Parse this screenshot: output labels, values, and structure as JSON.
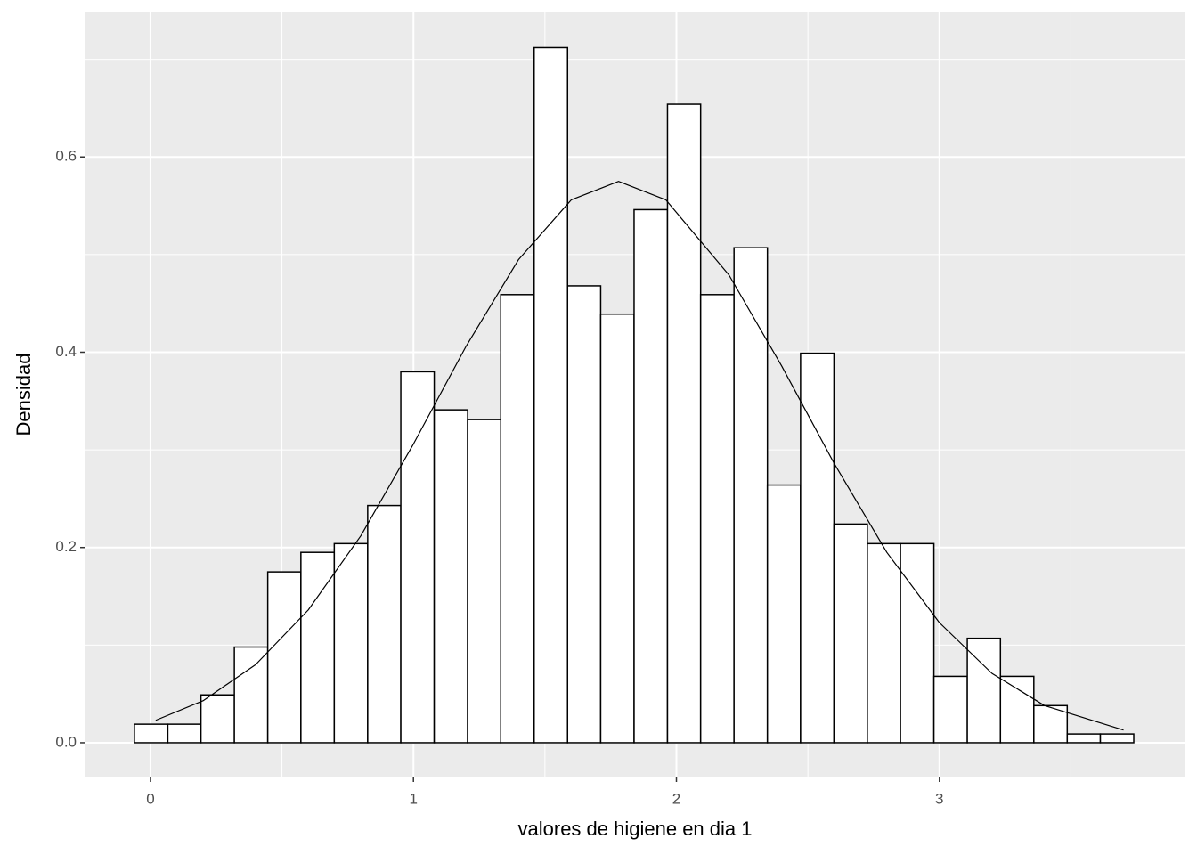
{
  "chart_data": {
    "type": "histogram",
    "x_label": "valores de higiene en dia 1",
    "y_label": "Densidad",
    "bins": [
      -0.061,
      0.066,
      0.192,
      0.319,
      0.446,
      0.572,
      0.699,
      0.826,
      0.952,
      1.079,
      1.206,
      1.332,
      1.459,
      1.586,
      1.712,
      1.839,
      1.966,
      2.092,
      2.219,
      2.346,
      2.472,
      2.599,
      2.726,
      2.852,
      2.979,
      3.106,
      3.232,
      3.359,
      3.486,
      3.612,
      3.739
    ],
    "values": [
      0.019,
      0.019,
      0.049,
      0.098,
      0.175,
      0.195,
      0.204,
      0.243,
      0.38,
      0.341,
      0.331,
      0.459,
      0.712,
      0.468,
      0.439,
      0.546,
      0.654,
      0.459,
      0.507,
      0.264,
      0.399,
      0.224,
      0.204,
      0.204,
      0.068,
      0.107,
      0.068,
      0.038,
      0.009,
      0.009
    ],
    "color": "#ffffff",
    "edge_color": "#000000",
    "density_curve": {
      "color": "#000000",
      "x": [
        0.02,
        0.2,
        0.4,
        0.6,
        0.8,
        1.0,
        1.2,
        1.4,
        1.6,
        1.78,
        1.96,
        2.2,
        2.4,
        2.6,
        2.8,
        3.0,
        3.2,
        3.4,
        3.7
      ],
      "y": [
        0.023,
        0.043,
        0.08,
        0.136,
        0.212,
        0.306,
        0.406,
        0.495,
        0.556,
        0.575,
        0.556,
        0.479,
        0.386,
        0.286,
        0.195,
        0.123,
        0.071,
        0.038,
        0.013
      ]
    },
    "xlim": [
      -0.247,
      3.932
    ],
    "ylim": [
      -0.0347,
      0.748
    ],
    "xticks": [
      0,
      1,
      2,
      3
    ],
    "yticks": [
      {
        "value": 0,
        "label": "0.0"
      },
      {
        "value": 0.2,
        "label": "0.2"
      },
      {
        "value": 0.4,
        "label": "0.4"
      },
      {
        "value": 0.6,
        "label": "0.6"
      }
    ],
    "x_minor_breaks": [
      0.5,
      1.5,
      2.5,
      3.5
    ],
    "y_minor_breaks": [
      0.1,
      0.3,
      0.5,
      0.7
    ],
    "grid": true,
    "panel_color": "#ebebeb"
  }
}
